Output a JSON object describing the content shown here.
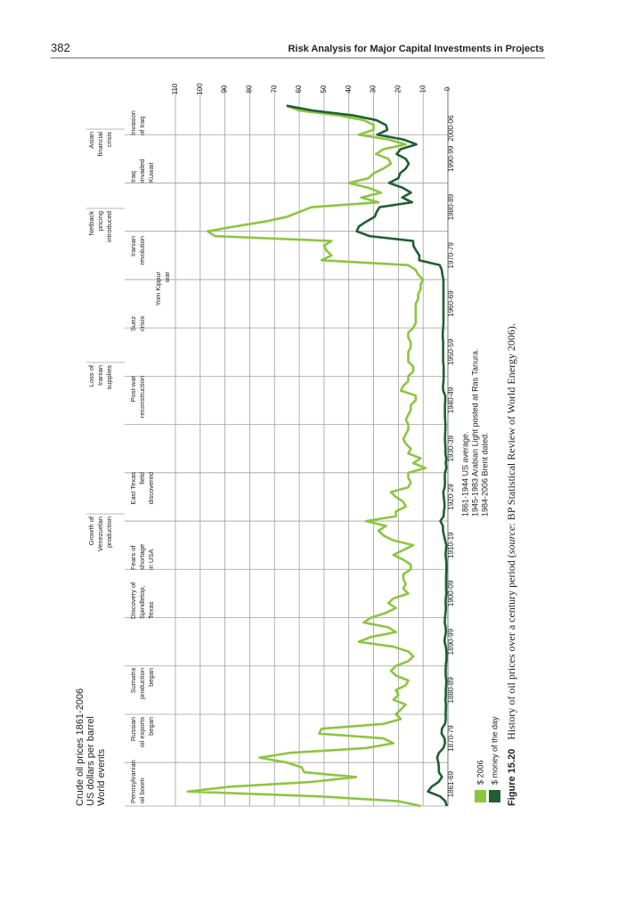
{
  "page": {
    "number": "382",
    "running_title": "Risk Analysis for Major Capital Investments in Projects"
  },
  "chart_data": {
    "type": "line",
    "title": "Crude oil prices 1861-2006",
    "subtitle": "US dollars per barrel",
    "events_heading": "World events",
    "xlim": [
      1861,
      2010
    ],
    "xticks": [
      {
        "value": 1861,
        "label": "1861-69"
      },
      {
        "value": 1870,
        "label": "1870-79"
      },
      {
        "value": 1880,
        "label": "1880-89"
      },
      {
        "value": 1890,
        "label": "1890-99"
      },
      {
        "value": 1900,
        "label": "1900-09"
      },
      {
        "value": 1910,
        "label": "1910-19"
      },
      {
        "value": 1920,
        "label": "1920-29"
      },
      {
        "value": 1930,
        "label": "1930-39"
      },
      {
        "value": 1940,
        "label": "1940-49"
      },
      {
        "value": 1950,
        "label": "1950-59"
      },
      {
        "value": 1960,
        "label": "1960-69"
      },
      {
        "value": 1970,
        "label": "1970-79"
      },
      {
        "value": 1980,
        "label": "1980-89"
      },
      {
        "value": 1990,
        "label": "1990-99"
      },
      {
        "value": 2000,
        "label": "2000-06"
      }
    ],
    "ylim": [
      0,
      110
    ],
    "yticks": [
      0,
      10,
      20,
      30,
      40,
      50,
      60,
      70,
      80,
      90,
      100,
      110
    ],
    "grid": true,
    "x": [
      1861,
      1862,
      1863,
      1864,
      1865,
      1866,
      1867,
      1868,
      1869,
      1870,
      1871,
      1872,
      1873,
      1874,
      1875,
      1876,
      1877,
      1878,
      1879,
      1880,
      1881,
      1882,
      1883,
      1884,
      1885,
      1886,
      1887,
      1888,
      1889,
      1890,
      1891,
      1892,
      1893,
      1894,
      1895,
      1896,
      1897,
      1898,
      1899,
      1900,
      1901,
      1902,
      1903,
      1904,
      1905,
      1906,
      1907,
      1908,
      1909,
      1910,
      1911,
      1912,
      1913,
      1914,
      1915,
      1916,
      1917,
      1918,
      1919,
      1920,
      1921,
      1922,
      1923,
      1924,
      1925,
      1926,
      1927,
      1928,
      1929,
      1930,
      1931,
      1932,
      1933,
      1934,
      1935,
      1936,
      1937,
      1938,
      1939,
      1940,
      1941,
      1942,
      1943,
      1944,
      1945,
      1946,
      1947,
      1948,
      1949,
      1950,
      1951,
      1952,
      1953,
      1954,
      1955,
      1956,
      1957,
      1958,
      1959,
      1960,
      1961,
      1962,
      1963,
      1964,
      1965,
      1966,
      1967,
      1968,
      1969,
      1970,
      1971,
      1972,
      1973,
      1974,
      1975,
      1976,
      1977,
      1978,
      1979,
      1980,
      1981,
      1982,
      1983,
      1984,
      1985,
      1986,
      1987,
      1988,
      1989,
      1990,
      1991,
      1992,
      1993,
      1994,
      1995,
      1996,
      1997,
      1998,
      1999,
      2000,
      2001,
      2002,
      2003,
      2004,
      2005,
      2006
    ],
    "series": [
      {
        "name": "$ 2006",
        "color": "#8cc63f",
        "values": [
          11,
          20,
          52,
          105,
          88,
          55,
          37,
          58,
          59,
          65,
          76,
          64,
          33,
          22,
          26,
          52,
          51,
          26,
          19,
          21,
          19,
          17,
          22,
          20,
          21,
          17,
          16,
          21,
          23,
          21,
          16,
          14,
          16,
          22,
          36,
          31,
          21,
          24,
          34,
          31,
          25,
          21,
          24,
          22,
          16,
          18,
          17,
          18,
          18,
          15,
          15,
          18,
          22,
          18,
          14,
          22,
          26,
          28,
          25,
          33,
          21,
          21,
          17,
          18,
          21,
          23,
          16,
          15,
          16,
          16,
          9,
          14,
          11,
          16,
          15,
          17,
          18,
          17,
          16,
          16,
          17,
          16,
          15,
          15,
          13,
          13,
          19,
          18,
          16,
          16,
          14,
          14,
          16,
          16,
          16,
          15,
          15,
          16,
          16,
          14,
          13,
          13,
          13,
          13,
          13,
          12,
          12,
          11,
          11,
          10,
          12,
          13,
          16,
          51,
          47,
          49,
          50,
          47,
          94,
          97,
          86,
          74,
          65,
          60,
          55,
          28,
          35,
          27,
          32,
          40,
          32,
          30,
          26,
          23,
          24,
          29,
          26,
          17,
          24,
          36,
          30,
          30,
          34,
          44,
          60,
          65
        ]
      },
      {
        "name": "$ money of the day",
        "color": "#1f5f32",
        "values": [
          0.49,
          1.05,
          3.15,
          8.06,
          6.59,
          3.74,
          2.41,
          3.63,
          3.64,
          3.86,
          4.34,
          3.64,
          1.83,
          1.17,
          1.35,
          2.56,
          2.42,
          1.19,
          0.86,
          0.95,
          0.86,
          0.78,
          1.0,
          0.84,
          0.88,
          0.71,
          0.67,
          0.88,
          0.94,
          0.87,
          0.67,
          0.56,
          0.64,
          0.84,
          1.36,
          1.18,
          0.79,
          0.91,
          1.29,
          1.19,
          0.96,
          0.8,
          0.94,
          0.86,
          0.62,
          0.73,
          0.72,
          0.72,
          0.7,
          0.61,
          0.61,
          0.74,
          0.95,
          0.81,
          0.64,
          1.1,
          1.56,
          1.98,
          2.01,
          3.07,
          1.73,
          1.61,
          1.34,
          1.43,
          1.68,
          1.88,
          1.3,
          1.17,
          1.27,
          1.19,
          0.65,
          0.87,
          0.67,
          1.0,
          0.97,
          1.09,
          1.18,
          1.13,
          1.02,
          1.02,
          1.14,
          1.19,
          1.2,
          1.21,
          1.05,
          1.12,
          1.9,
          1.99,
          1.78,
          1.71,
          1.71,
          1.71,
          1.93,
          1.93,
          1.93,
          1.93,
          1.9,
          2.08,
          2.08,
          1.9,
          1.8,
          1.8,
          1.8,
          1.8,
          1.8,
          1.8,
          1.8,
          1.8,
          1.8,
          1.8,
          2.24,
          2.48,
          3.29,
          11.58,
          11.53,
          12.8,
          13.92,
          14.02,
          31.61,
          36.83,
          35.93,
          32.97,
          29.55,
          28.78,
          27.56,
          14.43,
          18.44,
          14.92,
          18.23,
          23.73,
          20.0,
          19.32,
          16.97,
          15.82,
          17.02,
          20.67,
          19.09,
          12.72,
          17.97,
          28.5,
          24.44,
          25.02,
          28.83,
          38.27,
          54.52,
          65.14
        ]
      }
    ],
    "events": [
      {
        "lines": [
          "Pennsylvanian",
          "oil boom"
        ]
      },
      {
        "lines": [
          "Russian",
          "oil exports",
          "began"
        ]
      },
      {
        "lines": [
          "Sumatra",
          "production",
          "began"
        ]
      },
      {
        "lines": [
          "Discovery of",
          "Spindletop,",
          "Texas"
        ]
      },
      {
        "lines": [
          "Growth of",
          "Venezuelan",
          "production"
        ]
      },
      {
        "lines": [
          "Fears of",
          "shortage",
          "in USA"
        ]
      },
      {
        "lines": [
          "East Texas",
          "field",
          "discovered"
        ]
      },
      {
        "lines": [
          "Loss of",
          "Iranian",
          "supplies"
        ]
      },
      {
        "lines": [
          "Post-war",
          "reconstruction"
        ]
      },
      {
        "lines": [
          "Suez",
          "crisis"
        ]
      },
      {
        "lines": [
          "Yom Kippur",
          "war"
        ]
      },
      {
        "lines": [
          "Iranian",
          "revolution"
        ]
      },
      {
        "lines": [
          "Netback",
          "pricing",
          "introduced"
        ]
      },
      {
        "lines": [
          "Iraq",
          "invaded",
          "Kuwait"
        ]
      },
      {
        "lines": [
          "Asian",
          "financial",
          "crisis"
        ]
      },
      {
        "lines": [
          "Invasion",
          "of Iraq"
        ]
      }
    ],
    "notes": [
      "1861-1944 US average.",
      "1945-1983 Arabian Light posted at Ras Tanura.",
      "1984-2006 Brent dated."
    ],
    "caption": {
      "label": "Figure 15.20",
      "text": "History of oil prices over a century period (",
      "source_word": "source",
      "source_text": ": BP Statistical Review of World Energy 2006)."
    }
  }
}
